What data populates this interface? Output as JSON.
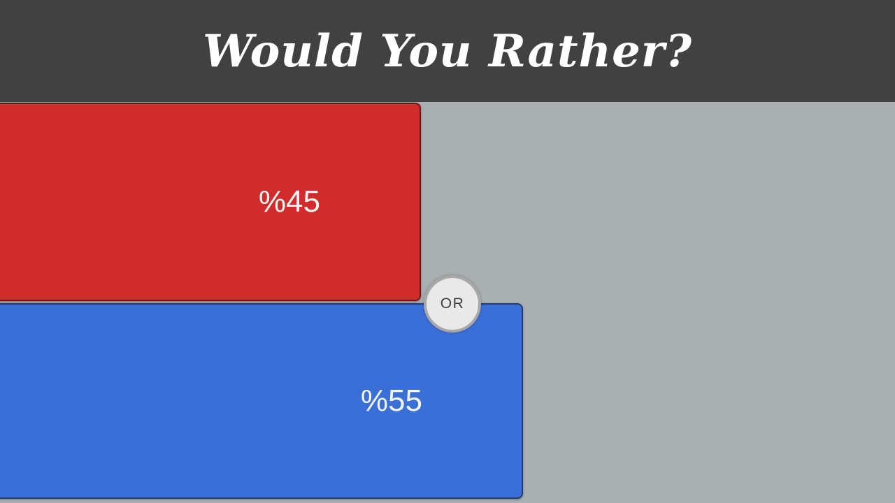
{
  "app": {
    "title": "Would You Rather?"
  },
  "theme": {
    "header_bg": "#414141",
    "header_text": "#ffffff",
    "page_bg": "#aab0b2",
    "option_a_color": "#d12b2b",
    "option_b_color": "#3b6fd8",
    "option_label_text": "#f5f5f5",
    "divider_bg": "#e9e9e9",
    "divider_border": "#a8a8a8",
    "divider_text": "#3e3e3e"
  },
  "poll": {
    "options": [
      {
        "label": "%45",
        "percent": 45,
        "color": "#d12b2b"
      },
      {
        "label": "%55",
        "percent": 55,
        "color": "#3b6fd8"
      }
    ],
    "divider_label": "OR"
  }
}
